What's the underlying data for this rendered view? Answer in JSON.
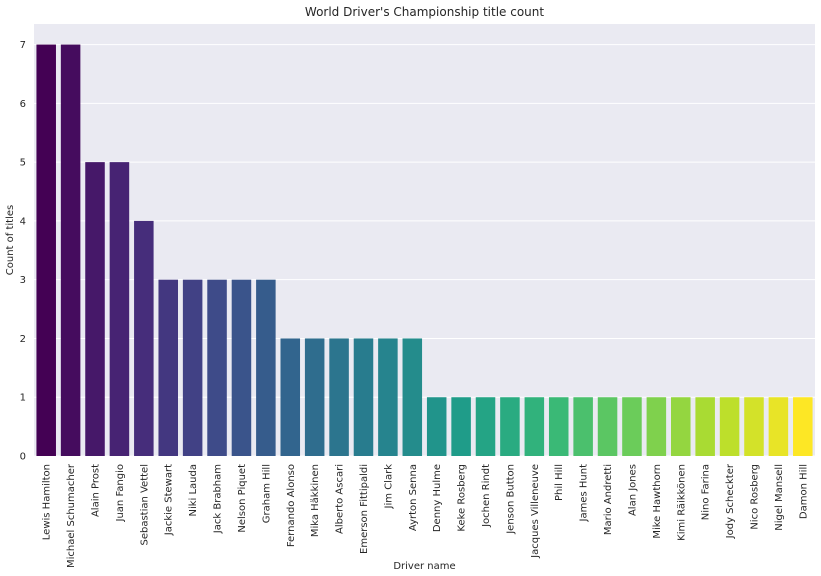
{
  "chart_data": {
    "type": "bar",
    "title": "World Driver's Championship title count",
    "xlabel": "Driver name",
    "ylabel": "Count of titles",
    "ylim": [
      0,
      7.35
    ],
    "yticks": [
      0,
      1,
      2,
      3,
      4,
      5,
      6,
      7
    ],
    "grid": true,
    "colormap": "viridis",
    "background": "#eaeaf2",
    "categories": [
      "Lewis Hamilton",
      "Michael Schumacher",
      "Alain Prost",
      "Juan Fangio",
      "Sebastian Vettel",
      "Jackie Stewart",
      "Niki Lauda",
      "Jack Brabham",
      "Nelson Piquet",
      "Graham Hill",
      "Fernando Alonso",
      "Mika Häkkinen",
      "Alberto Ascari",
      "Emerson Fittipaldi",
      "Jim Clark",
      "Ayrton Senna",
      "Denny Hulme",
      "Keke Rosberg",
      "Jochen Rindt",
      "Jenson Button",
      "Jacques Villeneuve",
      "Phil Hill",
      "James Hunt",
      "Mario Andretti",
      "Alan Jones",
      "Mike Hawthorn",
      "Kimi Räikkönen",
      "Nino Farina",
      "Jody Scheckter",
      "Nico Rosberg",
      "Nigel Mansell",
      "Damon Hill"
    ],
    "values": [
      7,
      7,
      5,
      5,
      4,
      3,
      3,
      3,
      3,
      3,
      2,
      2,
      2,
      2,
      2,
      2,
      1,
      1,
      1,
      1,
      1,
      1,
      1,
      1,
      1,
      1,
      1,
      1,
      1,
      1,
      1,
      1
    ]
  }
}
